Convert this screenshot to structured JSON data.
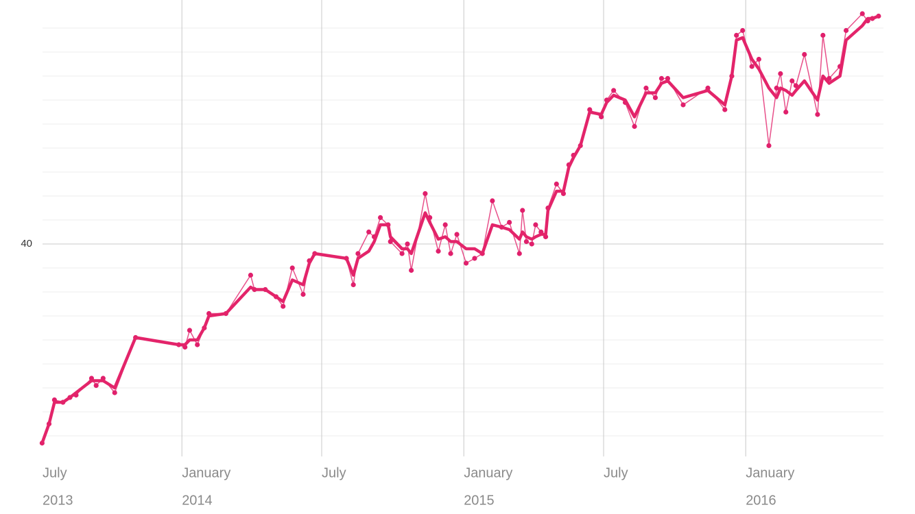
{
  "chart_data": {
    "type": "line",
    "x": [
      "2013-07-04",
      "2013-07-13",
      "2013-07-20",
      "2013-07-31",
      "2013-08-09",
      "2013-08-17",
      "2013-09-06",
      "2013-09-12",
      "2013-09-21",
      "2013-10-06",
      "2013-11-02",
      "2013-12-28",
      "2014-01-05",
      "2014-01-11",
      "2014-01-21",
      "2014-01-30",
      "2014-02-05",
      "2014-02-27",
      "2014-03-31",
      "2014-04-05",
      "2014-04-19",
      "2014-05-03",
      "2014-05-12",
      "2014-05-24",
      "2014-06-07",
      "2014-06-15",
      "2014-06-22",
      "2014-08-02",
      "2014-08-11",
      "2014-08-17",
      "2014-08-31",
      "2014-09-07",
      "2014-09-15",
      "2014-09-25",
      "2014-09-28",
      "2014-10-13",
      "2014-10-20",
      "2014-10-25",
      "2014-11-12",
      "2014-11-18",
      "2014-11-29",
      "2014-12-08",
      "2014-12-15",
      "2014-12-23",
      "2015-01-04",
      "2015-01-15",
      "2015-01-25",
      "2015-02-07",
      "2015-02-19",
      "2015-03-01",
      "2015-03-14",
      "2015-03-18",
      "2015-03-23",
      "2015-03-30",
      "2015-04-04",
      "2015-04-11",
      "2015-04-17",
      "2015-04-20",
      "2015-05-01",
      "2015-05-10",
      "2015-05-17",
      "2015-05-23",
      "2015-06-01",
      "2015-06-13",
      "2015-06-28",
      "2015-07-05",
      "2015-07-14",
      "2015-07-29",
      "2015-08-10",
      "2015-08-25",
      "2015-09-06",
      "2015-09-14",
      "2015-09-22",
      "2015-10-12",
      "2015-11-13",
      "2015-12-05",
      "2015-12-14",
      "2015-12-20",
      "2015-12-28",
      "2016-01-09",
      "2016-01-18",
      "2016-01-31",
      "2016-02-10",
      "2016-02-15",
      "2016-02-22",
      "2016-03-01",
      "2016-03-06",
      "2016-03-17",
      "2016-04-03",
      "2016-04-10",
      "2016-04-18",
      "2016-05-02",
      "2016-05-10",
      "2016-05-31",
      "2016-06-07",
      "2016-06-13",
      "2016-06-21"
    ],
    "series": [
      {
        "color": "#e8508a",
        "line_width": 1.5,
        "markers": true,
        "values": [
          31.7,
          32.5,
          33.5,
          33.4,
          33.6,
          33.7,
          34.4,
          34.1,
          34.4,
          33.8,
          36.1,
          35.8,
          35.7,
          36.4,
          35.8,
          36.5,
          37.1,
          37.1,
          38.7,
          38.1,
          38.1,
          37.8,
          37.4,
          39.0,
          37.9,
          39.3,
          39.6,
          39.4,
          38.3,
          39.6,
          40.5,
          40.3,
          41.1,
          40.8,
          40.1,
          39.6,
          40.0,
          38.9,
          42.1,
          41.1,
          39.7,
          40.8,
          39.6,
          40.4,
          39.2,
          39.4,
          39.6,
          41.8,
          40.7,
          40.9,
          39.6,
          41.4,
          40.1,
          40.0,
          40.8,
          40.5,
          40.3,
          41.5,
          42.5,
          42.1,
          43.3,
          43.7,
          44.1,
          45.6,
          45.3,
          46.0,
          46.4,
          45.9,
          44.9,
          46.5,
          46.1,
          46.9,
          46.9,
          45.8,
          46.5,
          45.6,
          47.0,
          48.7,
          48.9,
          47.4,
          47.7,
          44.1,
          46.5,
          47.1,
          45.5,
          46.8,
          46.6,
          47.9,
          45.4,
          48.7,
          46.9,
          47.4,
          48.9,
          49.6,
          49.3,
          49.4,
          49.5
        ]
      },
      {
        "color": "#e3246a",
        "line_width": 4.5,
        "markers": false,
        "values": [
          31.7,
          32.5,
          33.4,
          33.4,
          33.6,
          33.8,
          34.3,
          34.3,
          34.3,
          34.0,
          36.1,
          35.8,
          35.8,
          36.0,
          36.0,
          36.5,
          37.0,
          37.1,
          38.2,
          38.1,
          38.1,
          37.8,
          37.6,
          38.5,
          38.3,
          39.2,
          39.6,
          39.4,
          38.7,
          39.4,
          39.7,
          40.1,
          40.8,
          40.8,
          40.3,
          39.8,
          39.8,
          39.6,
          41.3,
          40.9,
          40.2,
          40.3,
          40.1,
          40.1,
          39.8,
          39.8,
          39.6,
          40.8,
          40.7,
          40.6,
          40.2,
          40.5,
          40.3,
          40.2,
          40.3,
          40.4,
          40.4,
          41.4,
          42.2,
          42.2,
          43.2,
          43.6,
          44.1,
          45.5,
          45.4,
          45.9,
          46.2,
          46.0,
          45.3,
          46.3,
          46.3,
          46.7,
          46.8,
          46.1,
          46.4,
          45.8,
          47.0,
          48.5,
          48.6,
          47.7,
          47.3,
          46.5,
          46.1,
          46.5,
          46.4,
          46.2,
          46.4,
          46.8,
          46.0,
          47.0,
          46.7,
          47.0,
          48.5,
          49.1,
          49.4,
          49.4,
          49.5
        ]
      }
    ],
    "xlim": [
      "2013-07-01",
      "2016-06-22"
    ],
    "xticks": [
      {
        "value": "2013-07-01",
        "label": "July",
        "year": "2013"
      },
      {
        "value": "2014-01-01",
        "label": "January",
        "year": "2014"
      },
      {
        "value": "2014-07-01",
        "label": "July"
      },
      {
        "value": "2015-01-01",
        "label": "January",
        "year": "2015"
      },
      {
        "value": "2015-07-01",
        "label": "July"
      },
      {
        "value": "2016-01-01",
        "label": "January",
        "year": "2016"
      }
    ],
    "ylim": [
      31.6,
      49.7
    ],
    "yticks": [
      40
    ],
    "minor_yticks": [
      32,
      33,
      34,
      35,
      36,
      37,
      38,
      39,
      41,
      42,
      43,
      44,
      45,
      46,
      47,
      48,
      49
    ],
    "grid": true
  }
}
